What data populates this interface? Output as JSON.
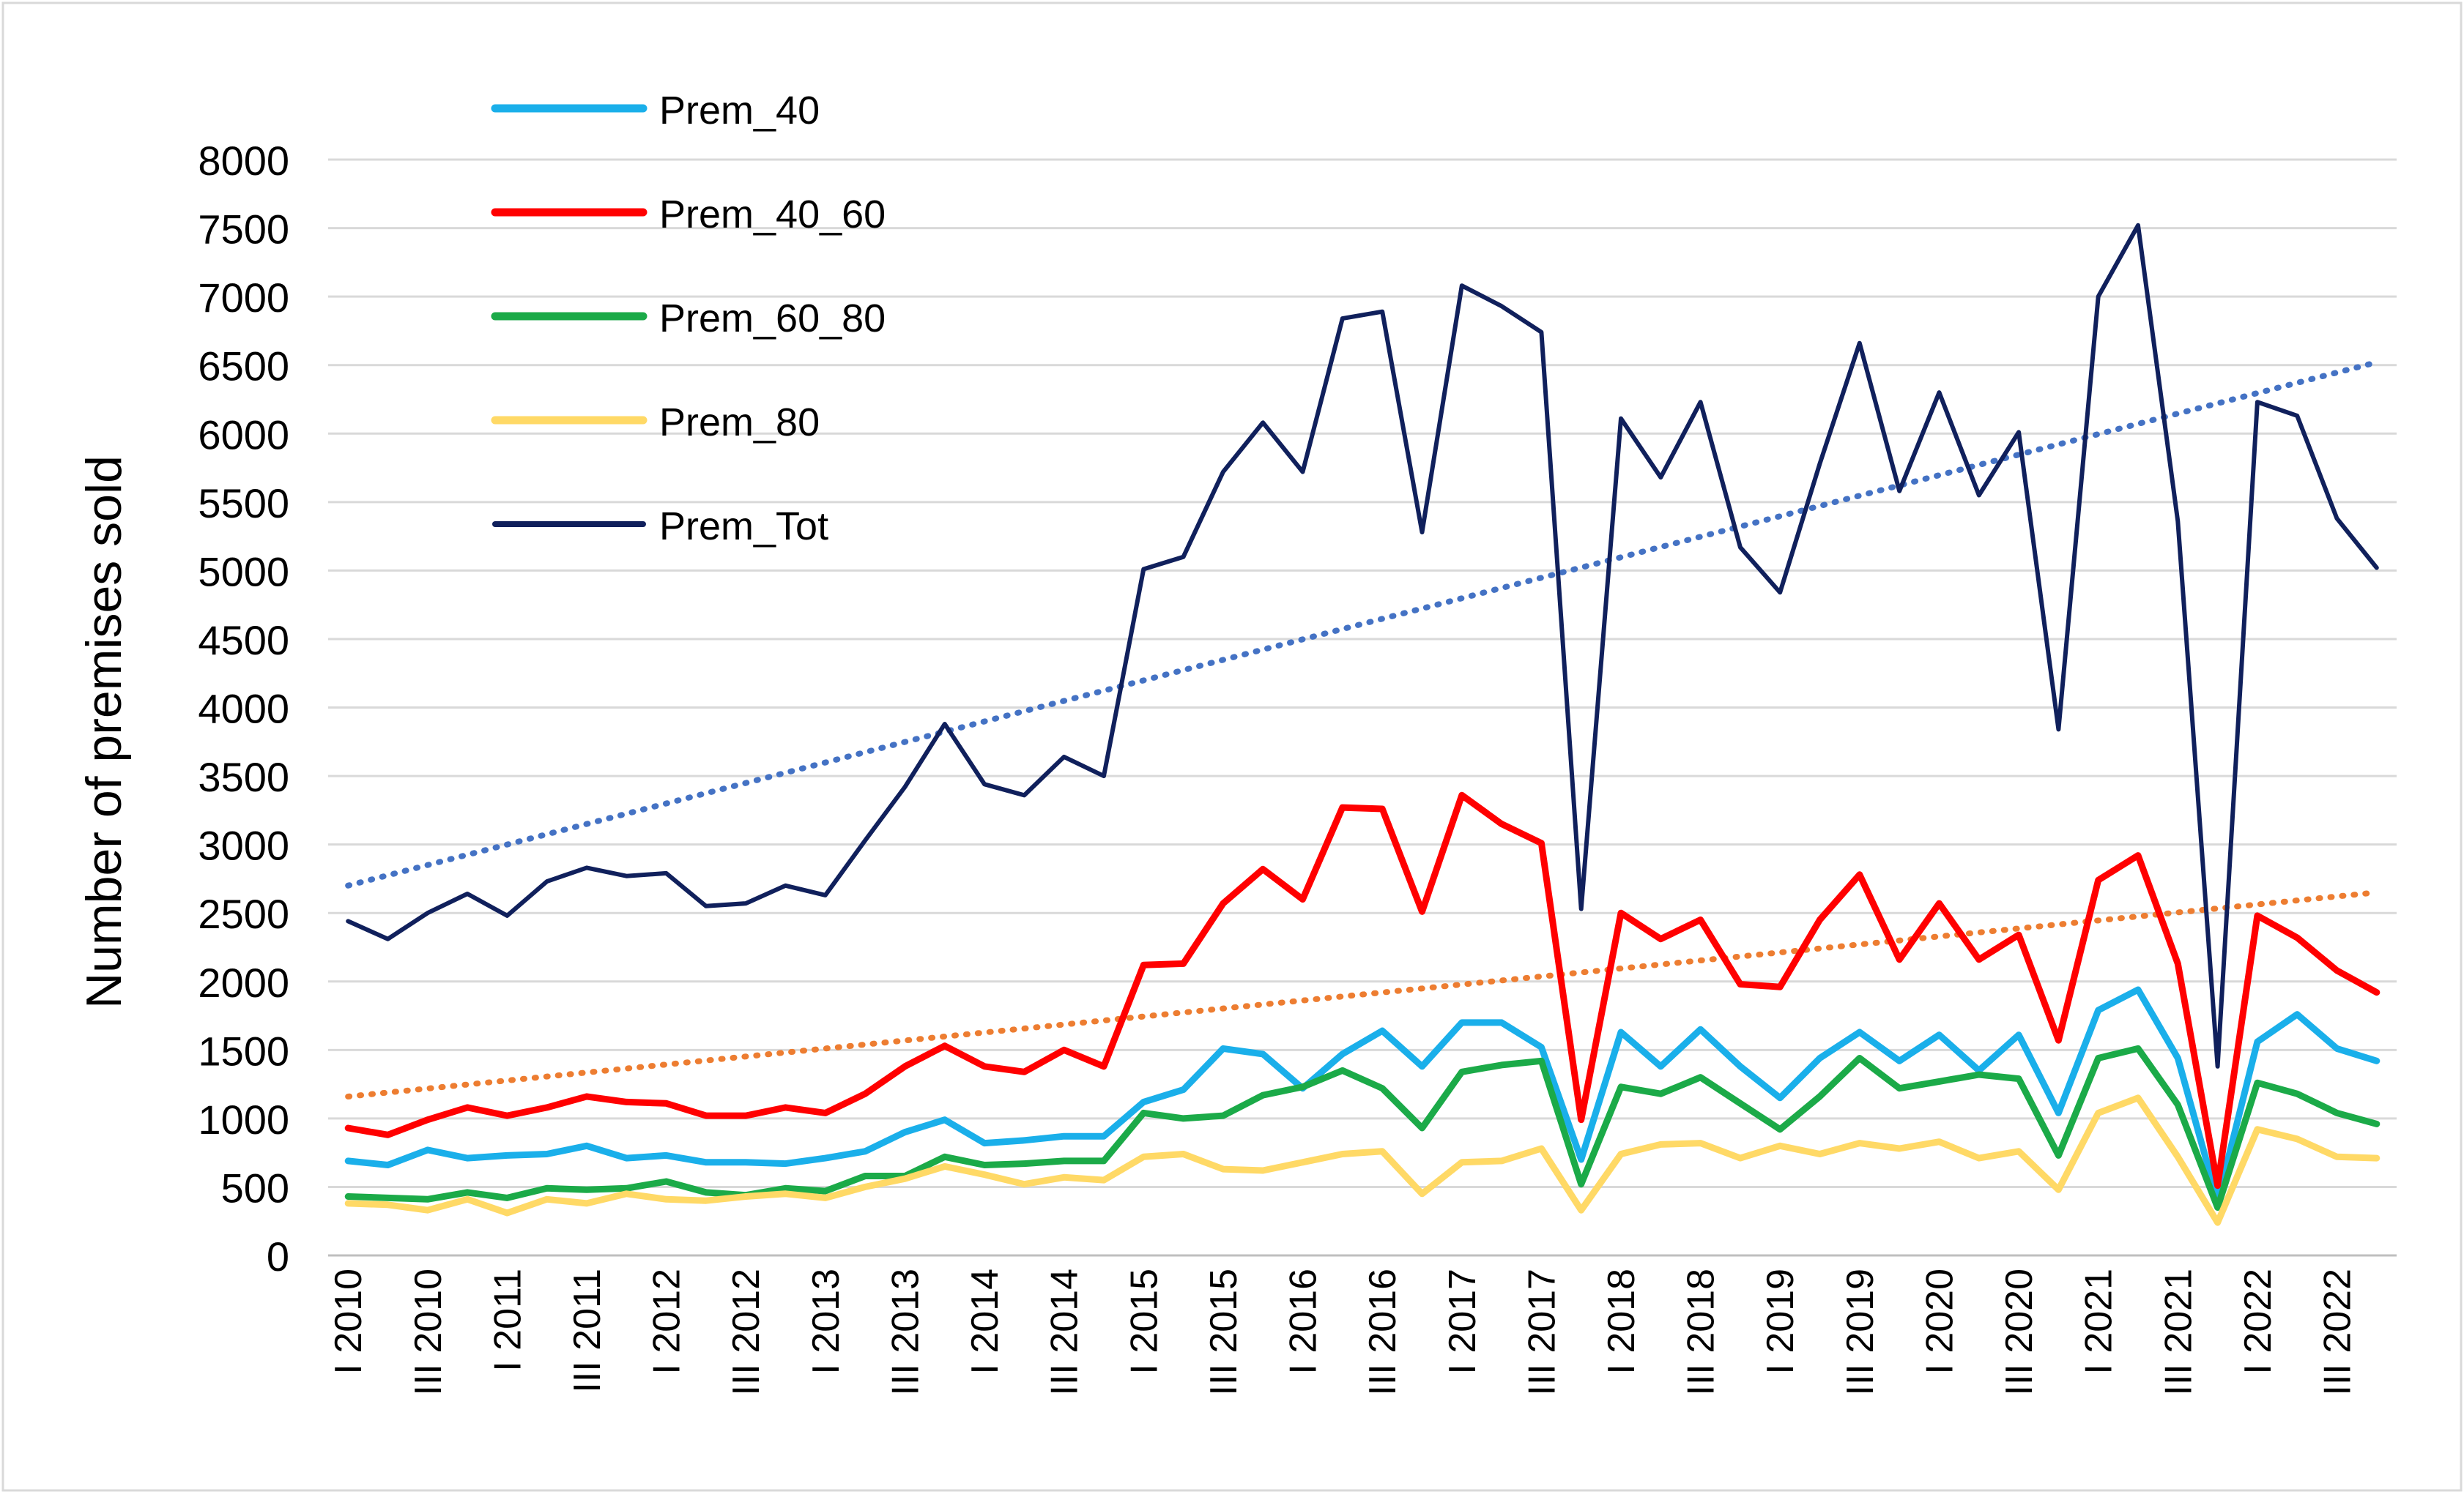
{
  "chart_data": {
    "type": "line",
    "title": "",
    "xlabel": "",
    "ylabel": "Number of premises sold",
    "ylim": [
      0,
      8000
    ],
    "ytick_step": 500,
    "grid": true,
    "legend_position": "top-left",
    "x_tick_labels": [
      "I 2010",
      "III 2010",
      "I 2011",
      "III 2011",
      "I 2012",
      "III 2012",
      "I 2013",
      "III 2013",
      "I 2014",
      "III 2014",
      "I 2015",
      "III 2015",
      "I 2016",
      "III 2016",
      "I 2017",
      "III 2017",
      "I 2018",
      "III 2018",
      "I 2019",
      "III 2019",
      "I 2020",
      "III 2020",
      "I 2021",
      "III 2021",
      "I 2022",
      "III 2022"
    ],
    "series": [
      {
        "name": "Prem_40",
        "color": "#1AAFEA",
        "values": [
          690,
          660,
          770,
          710,
          730,
          740,
          800,
          710,
          730,
          680,
          680,
          670,
          710,
          760,
          900,
          990,
          820,
          840,
          870,
          870,
          1120,
          1210,
          1510,
          1470,
          1220,
          1470,
          1640,
          1380,
          1700,
          1700,
          1520,
          700,
          1630,
          1380,
          1650,
          1380,
          1150,
          1440,
          1630,
          1420,
          1610,
          1350,
          1610,
          1040,
          1790,
          1940,
          1440,
          400,
          1560,
          1760,
          1510,
          1420
        ]
      },
      {
        "name": "Prem_40_60",
        "color": "#FF0000",
        "values": [
          930,
          880,
          990,
          1080,
          1020,
          1080,
          1160,
          1120,
          1110,
          1020,
          1020,
          1080,
          1040,
          1180,
          1380,
          1530,
          1380,
          1340,
          1500,
          1380,
          2120,
          2130,
          2570,
          2820,
          2600,
          3270,
          3260,
          2510,
          3360,
          3150,
          3010,
          990,
          2500,
          2310,
          2450,
          1980,
          1960,
          2450,
          2780,
          2160,
          2570,
          2160,
          2340,
          1570,
          2740,
          2920,
          2130,
          510,
          2480,
          2320,
          2080,
          1920
        ]
      },
      {
        "name": "Prem_60_80",
        "color": "#1BAA48",
        "values": [
          430,
          420,
          410,
          460,
          420,
          490,
          480,
          490,
          540,
          460,
          440,
          490,
          470,
          580,
          580,
          720,
          660,
          670,
          690,
          690,
          1040,
          1000,
          1020,
          1170,
          1230,
          1350,
          1220,
          930,
          1340,
          1390,
          1420,
          520,
          1230,
          1180,
          1300,
          1110,
          920,
          1160,
          1440,
          1220,
          1270,
          1320,
          1290,
          730,
          1440,
          1510,
          1100,
          350,
          1260,
          1180,
          1040,
          960
        ]
      },
      {
        "name": "Prem_80",
        "color": "#FFD966",
        "values": [
          380,
          370,
          330,
          410,
          310,
          410,
          380,
          450,
          410,
          400,
          430,
          450,
          420,
          500,
          560,
          650,
          590,
          520,
          570,
          550,
          720,
          740,
          630,
          620,
          680,
          740,
          760,
          450,
          680,
          690,
          780,
          330,
          740,
          810,
          820,
          710,
          800,
          740,
          820,
          780,
          830,
          710,
          760,
          480,
          1040,
          1150,
          720,
          240,
          920,
          850,
          720,
          710
        ]
      },
      {
        "name": "Prem_Tot",
        "color": "#10205C",
        "values": [
          2440,
          2310,
          2500,
          2640,
          2480,
          2730,
          2830,
          2770,
          2790,
          2550,
          2570,
          2700,
          2630,
          3030,
          3420,
          3880,
          3440,
          3360,
          3640,
          3500,
          5010,
          5100,
          5720,
          6080,
          5720,
          6840,
          6890,
          5280,
          7080,
          6930,
          6740,
          2530,
          6110,
          5680,
          6230,
          5170,
          4840,
          5780,
          6660,
          5580,
          6300,
          5550,
          6010,
          3840,
          7000,
          7520,
          5360,
          1380,
          6230,
          6130,
          5380,
          5020
        ]
      },
      {
        "name": "Prem_Tot trend",
        "color": "#4472C4",
        "style": "dotted",
        "in_legend": false,
        "values_start_end": [
          2700,
          6520
        ]
      },
      {
        "name": "Prem_40_60 trend",
        "color": "#ED7D31",
        "style": "dotted",
        "in_legend": false,
        "values_start_end": [
          1160,
          2650
        ]
      }
    ]
  }
}
